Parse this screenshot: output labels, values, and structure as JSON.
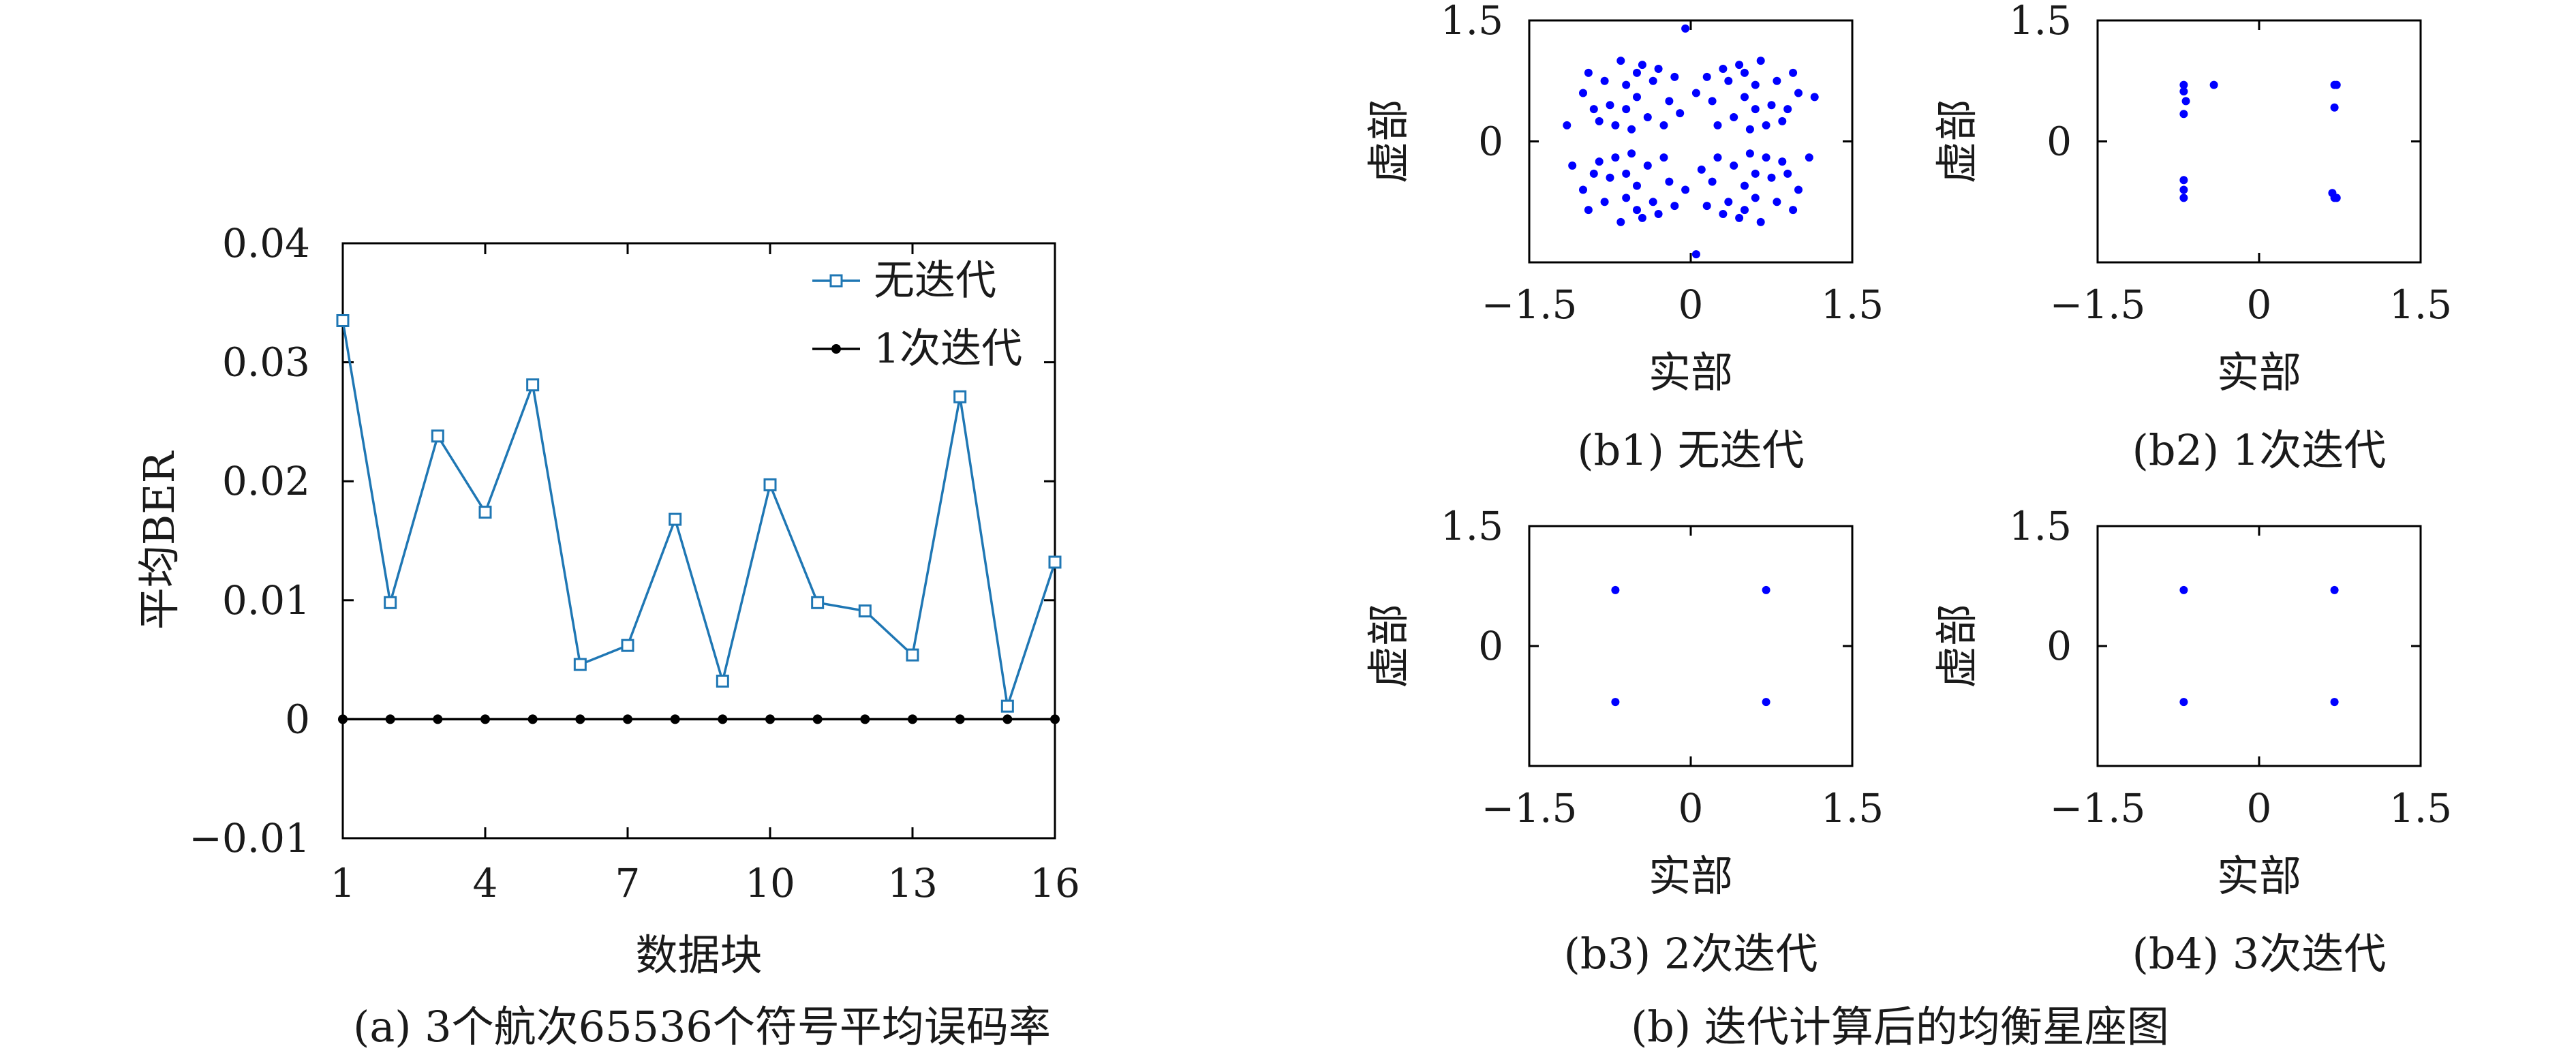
{
  "chart_data": [
    {
      "id": "a",
      "type": "line",
      "caption": "(a) 3个航次65536个符号平均误码率",
      "xlabel": "数据块",
      "ylabel": "平均BER",
      "xlim": [
        1,
        16
      ],
      "ylim": [
        -0.01,
        0.04
      ],
      "xticks": [
        1,
        4,
        7,
        10,
        13,
        16
      ],
      "xtick_labels": [
        "1",
        "4",
        "7",
        "10",
        "13",
        "16"
      ],
      "yticks": [
        -0.01,
        0,
        0.01,
        0.02,
        0.03,
        0.04
      ],
      "ytick_labels": [
        "−0.01",
        "0",
        "0.01",
        "0.02",
        "0.03",
        "0.04"
      ],
      "legend": "top-right",
      "x": [
        1,
        2,
        3,
        4,
        5,
        6,
        7,
        8,
        9,
        10,
        11,
        12,
        13,
        14,
        15,
        16
      ],
      "series": [
        {
          "name": "无迭代",
          "marker": "square",
          "color": "#1f77b4",
          "values": [
            0.0335,
            0.0098,
            0.0238,
            0.0174,
            0.0281,
            0.0046,
            0.0062,
            0.0168,
            0.0032,
            0.0197,
            0.0098,
            0.0091,
            0.0054,
            0.0271,
            0.0011,
            0.0132
          ]
        },
        {
          "name": "1次迭代",
          "marker": "dot",
          "color": "#000000",
          "values": [
            0,
            0,
            0,
            0,
            0,
            0,
            0,
            0,
            0,
            0,
            0,
            0,
            0,
            0,
            0,
            0
          ]
        }
      ]
    },
    {
      "id": "b1",
      "type": "scatter",
      "caption": "(b1) 无迭代",
      "xlabel": "实部",
      "ylabel": "虚部",
      "xlim": [
        -1.5,
        1.5
      ],
      "ylim": [
        -1.5,
        1.5
      ],
      "xtick_labels": [
        "−1.5",
        "0",
        "1.5"
      ],
      "ytick_labels": [
        "1.5",
        "0"
      ],
      "color": "#0000ff",
      "points": [
        [
          -0.6,
          0.7
        ],
        [
          -0.9,
          0.4
        ],
        [
          -0.3,
          0.9
        ],
        [
          -0.7,
          0.2
        ],
        [
          -0.5,
          0.55
        ],
        [
          -0.8,
          0.75
        ],
        [
          -0.4,
          0.3
        ],
        [
          -1.0,
          0.6
        ],
        [
          -0.2,
          0.5
        ],
        [
          -0.65,
          1.0
        ],
        [
          -0.55,
          0.15
        ],
        [
          -0.35,
          0.75
        ],
        [
          -0.75,
          0.45
        ],
        [
          -0.45,
          0.95
        ],
        [
          -0.85,
          0.25
        ],
        [
          -0.15,
          0.8
        ],
        [
          -0.6,
          0.4
        ],
        [
          -0.95,
          0.85
        ],
        [
          -0.25,
          0.2
        ],
        [
          -0.5,
          0.85
        ],
        [
          0.6,
          0.7
        ],
        [
          0.9,
          0.4
        ],
        [
          0.3,
          0.9
        ],
        [
          0.7,
          0.2
        ],
        [
          0.5,
          0.55
        ],
        [
          0.8,
          0.75
        ],
        [
          0.4,
          0.3
        ],
        [
          1.0,
          0.6
        ],
        [
          0.2,
          0.5
        ],
        [
          0.65,
          1.0
        ],
        [
          0.55,
          0.15
        ],
        [
          0.35,
          0.75
        ],
        [
          0.75,
          0.45
        ],
        [
          0.45,
          0.95
        ],
        [
          0.85,
          0.25
        ],
        [
          0.15,
          0.8
        ],
        [
          0.6,
          0.4
        ],
        [
          0.95,
          0.85
        ],
        [
          0.25,
          0.2
        ],
        [
          0.5,
          0.85
        ],
        [
          -0.6,
          -0.7
        ],
        [
          -0.9,
          -0.4
        ],
        [
          -0.3,
          -0.9
        ],
        [
          -0.7,
          -0.2
        ],
        [
          -0.5,
          -0.55
        ],
        [
          -0.8,
          -0.75
        ],
        [
          -0.4,
          -0.3
        ],
        [
          -1.0,
          -0.6
        ],
        [
          -0.2,
          -0.5
        ],
        [
          -0.65,
          -1.0
        ],
        [
          -0.55,
          -0.15
        ],
        [
          -0.35,
          -0.75
        ],
        [
          -0.75,
          -0.45
        ],
        [
          -0.45,
          -0.95
        ],
        [
          -0.85,
          -0.25
        ],
        [
          -0.15,
          -0.8
        ],
        [
          -0.6,
          -0.4
        ],
        [
          -0.95,
          -0.85
        ],
        [
          -0.25,
          -0.2
        ],
        [
          -0.5,
          -0.85
        ],
        [
          0.6,
          -0.7
        ],
        [
          0.9,
          -0.4
        ],
        [
          0.3,
          -0.9
        ],
        [
          0.7,
          -0.2
        ],
        [
          0.5,
          -0.55
        ],
        [
          0.8,
          -0.75
        ],
        [
          0.4,
          -0.3
        ],
        [
          1.0,
          -0.6
        ],
        [
          0.2,
          -0.5
        ],
        [
          0.65,
          -1.0
        ],
        [
          0.55,
          -0.15
        ],
        [
          0.35,
          -0.75
        ],
        [
          0.75,
          -0.45
        ],
        [
          0.45,
          -0.95
        ],
        [
          0.85,
          -0.25
        ],
        [
          0.15,
          -0.8
        ],
        [
          0.6,
          -0.4
        ],
        [
          0.95,
          -0.85
        ],
        [
          0.25,
          -0.2
        ],
        [
          0.5,
          -0.85
        ],
        [
          -0.05,
          1.4
        ],
        [
          1.15,
          0.55
        ],
        [
          -1.1,
          -0.3
        ],
        [
          0.05,
          -1.4
        ],
        [
          -0.1,
          0.35
        ],
        [
          0.1,
          -0.35
        ],
        [
          0.05,
          0.6
        ],
        [
          -0.05,
          -0.6
        ],
        [
          1.1,
          -0.2
        ],
        [
          -1.15,
          0.2
        ]
      ]
    },
    {
      "id": "b2",
      "type": "scatter",
      "caption": "(b2) 1次迭代",
      "xlabel": "实部",
      "ylabel": "虚部",
      "xlim": [
        -1.5,
        1.5
      ],
      "ylim": [
        -1.5,
        1.5
      ],
      "xtick_labels": [
        "−1.5",
        "0",
        "1.5"
      ],
      "ytick_labels": [
        "1.5",
        "0"
      ],
      "color": "#0000ff",
      "points": [
        [
          -0.7,
          0.7
        ],
        [
          -0.7,
          0.62
        ],
        [
          -0.68,
          0.5
        ],
        [
          -0.7,
          0.34
        ],
        [
          -0.42,
          0.7
        ],
        [
          0.7,
          0.7
        ],
        [
          0.72,
          0.7
        ],
        [
          0.7,
          0.42
        ],
        [
          -0.7,
          -0.7
        ],
        [
          -0.7,
          -0.6
        ],
        [
          -0.7,
          -0.48
        ],
        [
          0.7,
          -0.7
        ],
        [
          0.68,
          -0.64
        ],
        [
          0.72,
          -0.7
        ]
      ]
    },
    {
      "id": "b3",
      "type": "scatter",
      "caption": "(b3) 2次迭代",
      "xlabel": "实部",
      "ylabel": "虚部",
      "xlim": [
        -1.5,
        1.5
      ],
      "ylim": [
        -1.5,
        1.5
      ],
      "xtick_labels": [
        "−1.5",
        "0",
        "1.5"
      ],
      "ytick_labels": [
        "1.5",
        "0"
      ],
      "color": "#0000ff",
      "points": [
        [
          -0.7,
          0.7
        ],
        [
          0.7,
          0.7
        ],
        [
          -0.7,
          -0.7
        ],
        [
          0.7,
          -0.7
        ]
      ]
    },
    {
      "id": "b4",
      "type": "scatter",
      "caption": "(b4) 3次迭代",
      "xlabel": "实部",
      "ylabel": "虚部",
      "xlim": [
        -1.5,
        1.5
      ],
      "ylim": [
        -1.5,
        1.5
      ],
      "xtick_labels": [
        "−1.5",
        "0",
        "1.5"
      ],
      "ytick_labels": [
        "1.5",
        "0"
      ],
      "color": "#0000ff",
      "points": [
        [
          -0.7,
          0.7
        ],
        [
          0.7,
          0.7
        ],
        [
          -0.7,
          -0.7
        ],
        [
          0.7,
          -0.7
        ]
      ]
    }
  ],
  "group_caption_b": "(b) 迭代计算后的均衡星座图"
}
